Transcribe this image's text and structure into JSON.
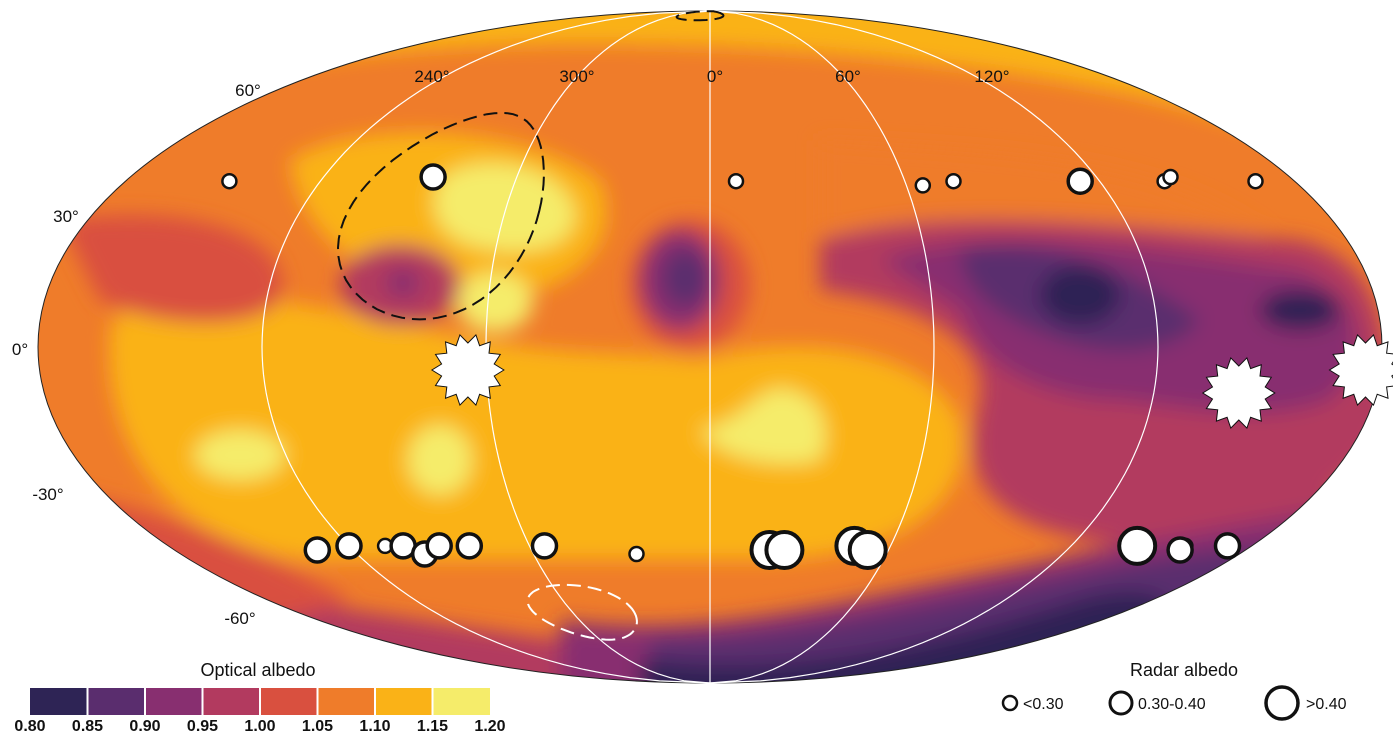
{
  "map": {
    "projection": "Mollweide",
    "longitude_labels": [
      "240°",
      "300°",
      "0°",
      "60°",
      "120°"
    ],
    "latitude_labels": [
      "60°",
      "30°",
      "0°",
      "-30°",
      "-60°"
    ],
    "graticule_color": "#ffffff"
  },
  "colorbar": {
    "title": "Optical albedo",
    "ticks": [
      "0.80",
      "0.85",
      "0.90",
      "0.95",
      "1.00",
      "1.05",
      "1.10",
      "1.15",
      "1.20"
    ],
    "colors": [
      "#2e2455",
      "#5a2d6e",
      "#882f70",
      "#b23a5f",
      "#d9503f",
      "#ef7c2a",
      "#fab217",
      "#f5ec6a"
    ]
  },
  "radar_legend": {
    "title": "Radar albedo",
    "items": [
      {
        "label": "<0.30",
        "size": "small"
      },
      {
        "label": "0.30-0.40",
        "size": "medium"
      },
      {
        "label": ">0.40",
        "size": "large"
      }
    ]
  },
  "radar_points": [
    {
      "lon": 274,
      "lat": 38,
      "size": "medium"
    },
    {
      "lon": 212,
      "lat": 37,
      "size": "small"
    },
    {
      "lon": 8,
      "lat": 37,
      "size": "small"
    },
    {
      "lon": 65,
      "lat": 36,
      "size": "small"
    },
    {
      "lon": 75,
      "lat": 37,
      "size": "small"
    },
    {
      "lon": 114,
      "lat": 37,
      "size": "medium"
    },
    {
      "lon": 168,
      "lat": 37,
      "size": "small"
    },
    {
      "lon": 140,
      "lat": 37,
      "size": "small"
    },
    {
      "lon": 143,
      "lat": 38,
      "size": "small"
    },
    {
      "lon": 155,
      "lat": -45,
      "size": "small"
    },
    {
      "lon": 158,
      "lat": -45,
      "size": "small"
    },
    {
      "lon": 228,
      "lat": -46,
      "size": "medium"
    },
    {
      "lon": 240,
      "lat": -45,
      "size": "medium"
    },
    {
      "lon": 252,
      "lat": -45,
      "size": "small"
    },
    {
      "lon": 258,
      "lat": -45,
      "size": "medium"
    },
    {
      "lon": 263,
      "lat": -47,
      "size": "medium"
    },
    {
      "lon": 270,
      "lat": -45,
      "size": "medium"
    },
    {
      "lon": 280,
      "lat": -45,
      "size": "medium"
    },
    {
      "lon": 305,
      "lat": -45,
      "size": "medium"
    },
    {
      "lon": 335,
      "lat": -47,
      "size": "small"
    },
    {
      "lon": 20,
      "lat": -46,
      "size": "large"
    },
    {
      "lon": 25,
      "lat": -46,
      "size": "large"
    },
    {
      "lon": 48,
      "lat": -45,
      "size": "large"
    },
    {
      "lon": 53,
      "lat": -46,
      "size": "large"
    },
    {
      "lon": 142,
      "lat": -45,
      "size": "large"
    },
    {
      "lon": 158,
      "lat": -46,
      "size": "medium"
    },
    {
      "lon": 172,
      "lat": -45,
      "size": "medium"
    }
  ],
  "star_markers": [
    {
      "lon": 295,
      "lat": -5
    },
    {
      "lon": 143,
      "lat": -10
    },
    {
      "lon": 176,
      "lat": -5
    }
  ],
  "dashed_regions": [
    {
      "color": "#111111",
      "lon": 282,
      "lat": 30,
      "rx_deg": 28,
      "ry_deg": 24
    },
    {
      "color": "#111111",
      "lon": 345,
      "lat": 88,
      "rx_deg": 40,
      "ry_deg": 4
    },
    {
      "color": "#ffffff",
      "lon": 305,
      "lat": -63,
      "rx_deg": 22,
      "ry_deg": 8
    }
  ]
}
